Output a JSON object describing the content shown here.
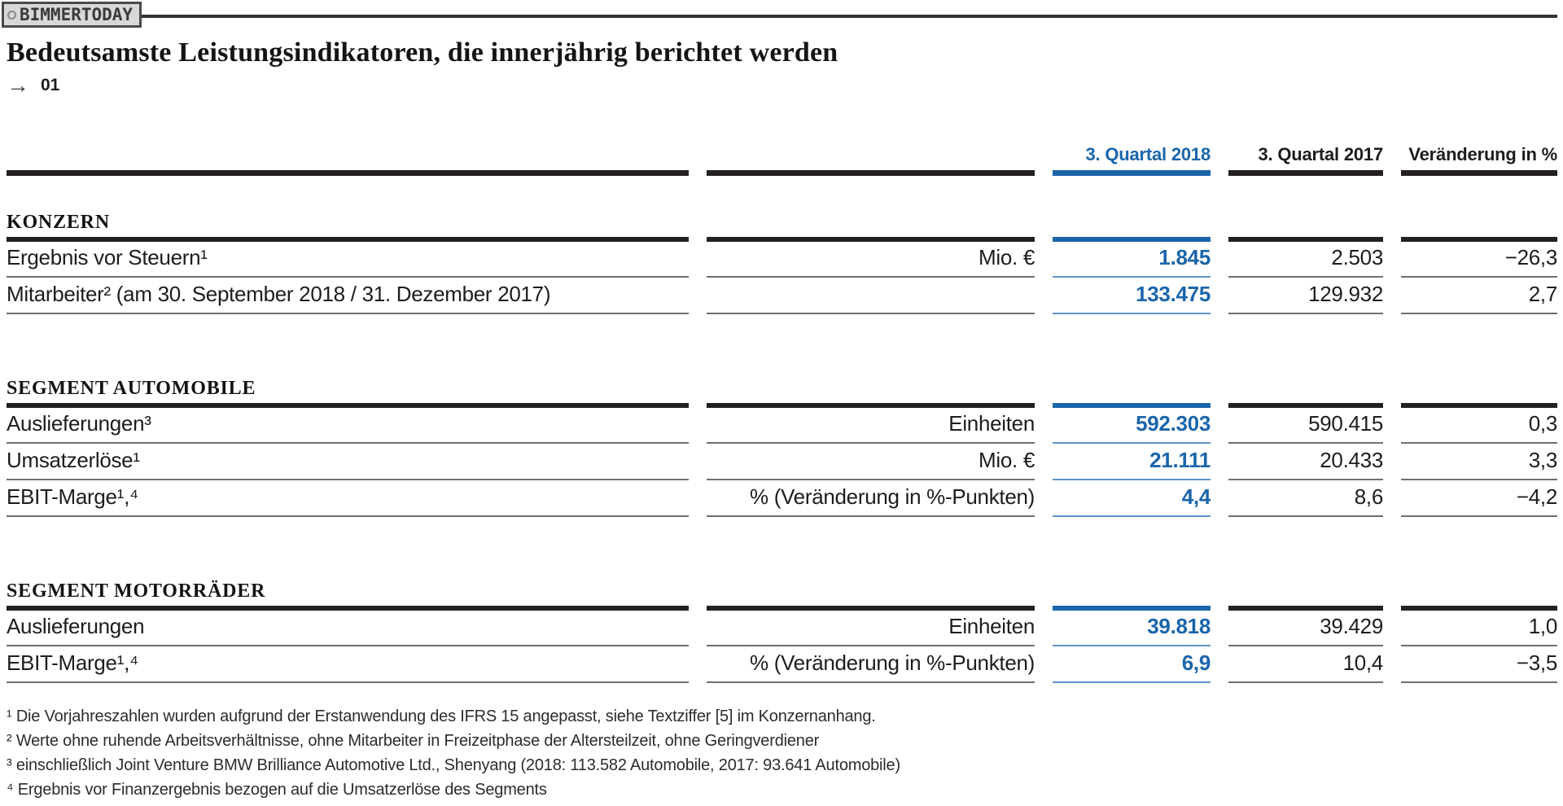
{
  "brand": {
    "badge": "BIMMERTODAY"
  },
  "title": "Bedeutsamste Leistungsindikatoren, die innerjährig berichtet werden",
  "ref": {
    "arrow": "→",
    "number": "01"
  },
  "colors": {
    "accent_blue": "#1a65aa",
    "accent_blue_light": "#5d94cb",
    "bar_black": "#242020",
    "rule_gray": "#6f6f6f"
  },
  "table": {
    "header": {
      "q2018": "3. Quartal 2018",
      "q2017": "3. Quartal 2017",
      "change": "Veränderung in %"
    },
    "sections": [
      {
        "name": "KONZERN",
        "rows": [
          {
            "label": "Ergebnis vor Steuern¹",
            "unit": "Mio. €",
            "q2018": "1.845",
            "q2017": "2.503",
            "change": "−26,3"
          },
          {
            "label": "Mitarbeiter² (am 30. September 2018 / 31. Dezember 2017)",
            "unit": "",
            "q2018": "133.475",
            "q2017": "129.932",
            "change": "2,7"
          }
        ]
      },
      {
        "name": "SEGMENT AUTOMOBILE",
        "rows": [
          {
            "label": "Auslieferungen³",
            "unit": "Einheiten",
            "q2018": "592.303",
            "q2017": "590.415",
            "change": "0,3"
          },
          {
            "label": "Umsatzerlöse¹",
            "unit": "Mio. €",
            "q2018": "21.111",
            "q2017": "20.433",
            "change": "3,3"
          },
          {
            "label": "EBIT-Marge¹,⁴",
            "unit": "% (Veränderung in %-Punkten)",
            "q2018": "4,4",
            "q2017": "8,6",
            "change": "−4,2"
          }
        ]
      },
      {
        "name": "SEGMENT MOTORRÄDER",
        "rows": [
          {
            "label": "Auslieferungen",
            "unit": "Einheiten",
            "q2018": "39.818",
            "q2017": "39.429",
            "change": "1,0"
          },
          {
            "label": "EBIT-Marge¹,⁴",
            "unit": "% (Veränderung in %-Punkten)",
            "q2018": "6,9",
            "q2017": "10,4",
            "change": "−3,5"
          }
        ]
      }
    ]
  },
  "footnotes": [
    "¹ Die Vorjahreszahlen wurden aufgrund der Erstanwendung des IFRS 15 angepasst, siehe Textziffer [5] im Konzernanhang.",
    "² Werte ohne ruhende Arbeitsverhältnisse, ohne Mitarbeiter in Freizeitphase der Altersteilzeit, ohne Geringverdiener",
    "³ einschließlich Joint Venture BMW Brilliance Automotive Ltd., Shenyang (2018: 113.582 Automobile, 2017: 93.641 Automobile)",
    "⁴ Ergebnis vor Finanzergebnis bezogen auf die Umsatzerlöse des Segments"
  ]
}
